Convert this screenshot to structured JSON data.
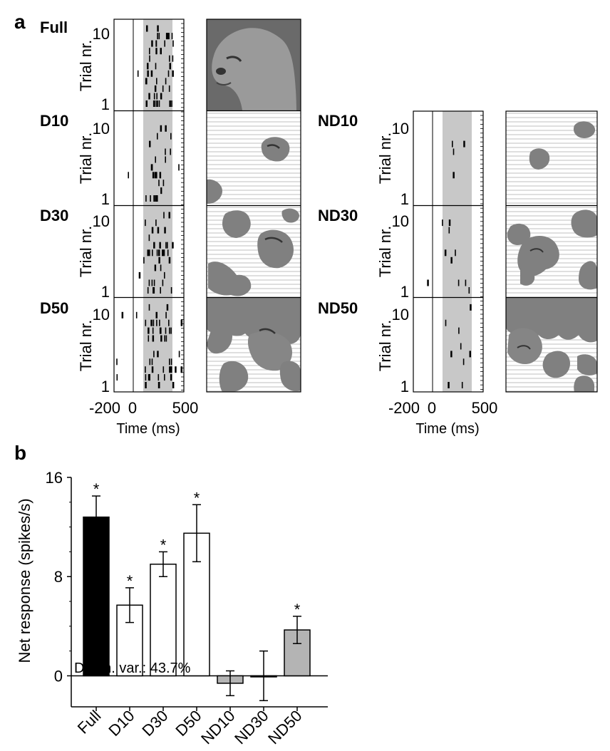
{
  "panels": {
    "a": "a",
    "b": "b"
  },
  "raster": {
    "ylabel": "Trial nr.",
    "xlabel": "Time (ms)",
    "xticks": [
      "-200",
      "0",
      "500"
    ],
    "ytick_top": "10",
    "ytick_bottom": "1",
    "left_column": [
      "Full",
      "D10",
      "D30",
      "D50"
    ],
    "right_column": [
      "ND10",
      "ND30",
      "ND50"
    ]
  },
  "chart_data": {
    "type": "bar",
    "categories": [
      "Full",
      "D10",
      "D30",
      "D50",
      "ND10",
      "ND30",
      "ND50"
    ],
    "values": [
      12.8,
      5.7,
      9.0,
      11.5,
      -0.6,
      0.0,
      3.7
    ],
    "errors": [
      1.7,
      1.4,
      1.0,
      2.3,
      1.0,
      2.0,
      1.1
    ],
    "significant": [
      true,
      true,
      true,
      true,
      false,
      false,
      true
    ],
    "bar_colors": [
      "#000000",
      "#ffffff",
      "#ffffff",
      "#ffffff",
      "#b4b4b4",
      "#b4b4b4",
      "#b4b4b4"
    ],
    "ylabel": "Net response (spikes/s)",
    "xlabel": "",
    "ylim": [
      -2.5,
      16
    ],
    "yticks": [
      0,
      8,
      16
    ],
    "star": "*",
    "annotation": "Diagn. var.: 43.7%"
  }
}
